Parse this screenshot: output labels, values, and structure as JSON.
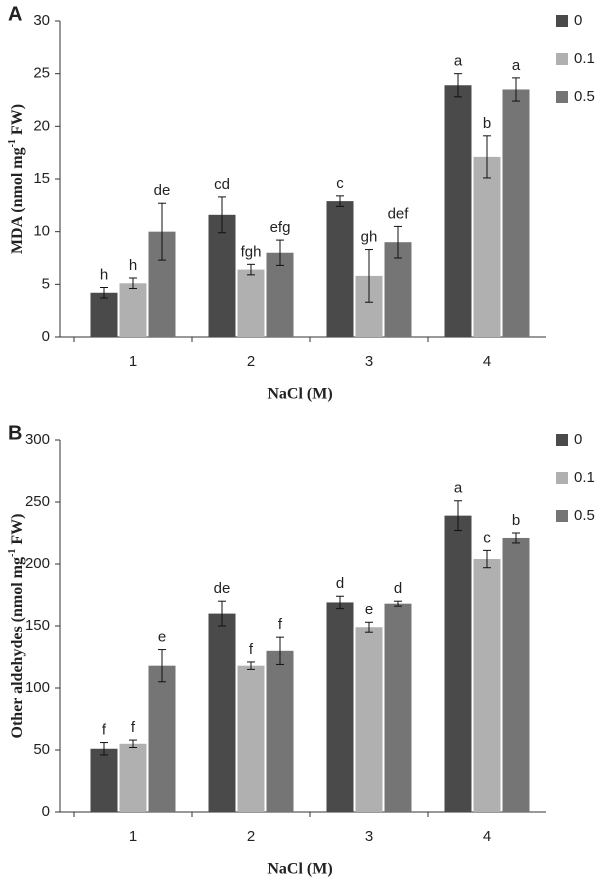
{
  "chart_data": [
    {
      "type": "bar",
      "panel_label": "A",
      "x_label": "NaCl (M)",
      "y_label": [
        "MDA (nmol mg",
        "-1",
        " FW)"
      ],
      "categories": [
        "1",
        "2",
        "3",
        "4"
      ],
      "ylim": [
        0,
        30
      ],
      "yticks": [
        0,
        5,
        10,
        15,
        20,
        25,
        30
      ],
      "series": [
        {
          "name": "0",
          "color": "#4a4a4a",
          "values": [
            4.2,
            11.6,
            12.9,
            23.9
          ],
          "errors": [
            0.5,
            1.7,
            0.5,
            1.1
          ],
          "labels": [
            "h",
            "cd",
            "c",
            "a"
          ]
        },
        {
          "name": "0.1",
          "color": "#b0b0b0",
          "values": [
            5.1,
            6.4,
            5.8,
            17.1
          ],
          "errors": [
            0.5,
            0.5,
            2.5,
            2.0
          ],
          "labels": [
            "h",
            "fgh",
            "gh",
            "b"
          ]
        },
        {
          "name": "0.5",
          "color": "#757575",
          "values": [
            10.0,
            8.0,
            9.0,
            23.5
          ],
          "errors": [
            2.7,
            1.2,
            1.5,
            1.1
          ],
          "labels": [
            "de",
            "efg",
            "def",
            "a"
          ]
        }
      ]
    },
    {
      "type": "bar",
      "panel_label": "B",
      "x_label": "NaCl (M)",
      "y_label": [
        "Other aldehydes (nmol mg",
        "-1",
        " FW)"
      ],
      "categories": [
        "1",
        "2",
        "3",
        "4"
      ],
      "ylim": [
        0,
        300
      ],
      "yticks": [
        0,
        50,
        100,
        150,
        200,
        250,
        300
      ],
      "series": [
        {
          "name": "0",
          "color": "#4a4a4a",
          "values": [
            51,
            160,
            169,
            239
          ],
          "errors": [
            5,
            10,
            5,
            12
          ],
          "labels": [
            "f",
            "de",
            "d",
            "a"
          ]
        },
        {
          "name": "0.1",
          "color": "#b0b0b0",
          "values": [
            55,
            118,
            149,
            204
          ],
          "errors": [
            3,
            3,
            4,
            7
          ],
          "labels": [
            "f",
            "f",
            "e",
            "c"
          ]
        },
        {
          "name": "0.5",
          "color": "#757575",
          "values": [
            118,
            130,
            168,
            221
          ],
          "errors": [
            13,
            11,
            2,
            4
          ],
          "labels": [
            "e",
            "f",
            "d",
            "b"
          ]
        }
      ]
    }
  ]
}
